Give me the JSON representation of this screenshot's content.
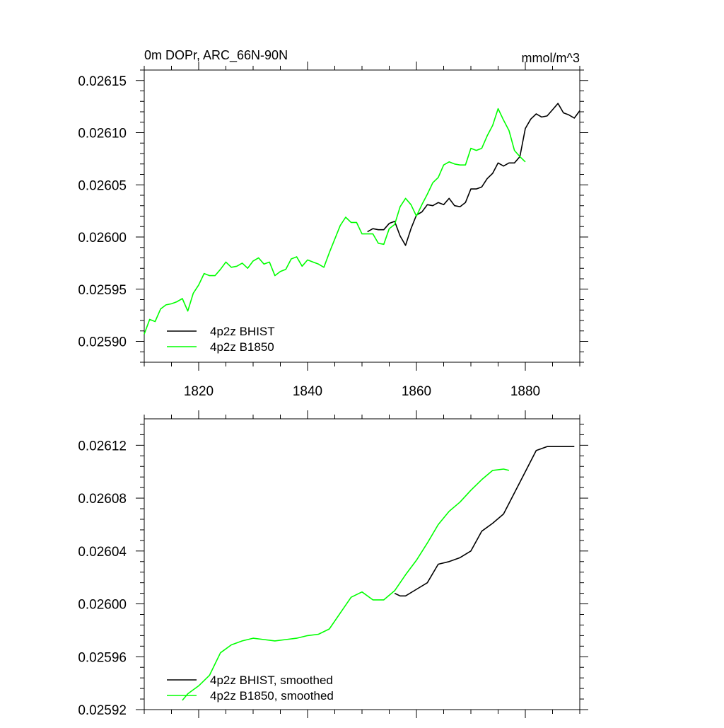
{
  "colors": {
    "bhist": "#000000",
    "b1850": "#00ff00",
    "frame": "#000000"
  },
  "chart_data": [
    {
      "type": "line",
      "title": "0m DOPr, ARC_66N-90N",
      "units": "mmol/m^3",
      "xlim": [
        1810,
        1890
      ],
      "ylim": [
        0.02588,
        0.02616
      ],
      "xticks": [
        1820,
        1840,
        1860,
        1880
      ],
      "xtick_labels": [
        "1820",
        "1840",
        "1860",
        "1880"
      ],
      "yticks": [
        0.0259,
        0.02595,
        0.026,
        0.02605,
        0.0261,
        0.02615
      ],
      "ytick_labels": [
        "0.02590",
        "0.02595",
        "0.02600",
        "0.02605",
        "0.02610",
        "0.02615"
      ],
      "legend": [
        "4p2z BHIST",
        "4p2z B1850"
      ],
      "legend_position": "bottom-left",
      "series": [
        {
          "name": "4p2z BHIST",
          "color": "#000000",
          "x": [
            1851,
            1852,
            1853,
            1854,
            1855,
            1856,
            1857,
            1858,
            1859,
            1860,
            1861,
            1862,
            1863,
            1864,
            1865,
            1866,
            1867,
            1868,
            1869,
            1870,
            1871,
            1872,
            1873,
            1874,
            1875,
            1876,
            1877,
            1878,
            1879,
            1880,
            1881,
            1882,
            1883,
            1884,
            1885,
            1886,
            1887,
            1888,
            1889,
            1890
          ],
          "values": [
            0.026005,
            0.026008,
            0.026007,
            0.026007,
            0.026013,
            0.026015,
            0.026001,
            0.025992,
            0.026008,
            0.026021,
            0.026024,
            0.026031,
            0.02603,
            0.026033,
            0.026031,
            0.026037,
            0.02603,
            0.026029,
            0.026033,
            0.026046,
            0.026046,
            0.026048,
            0.026056,
            0.026061,
            0.026071,
            0.026068,
            0.026071,
            0.026071,
            0.026077,
            0.026104,
            0.026113,
            0.026118,
            0.026115,
            0.026116,
            0.026122,
            0.026128,
            0.026119,
            0.026117,
            0.026114,
            0.026121
          ]
        },
        {
          "name": "4p2z B1850",
          "color": "#00ff00",
          "x": [
            1810,
            1811,
            1812,
            1813,
            1814,
            1815,
            1816,
            1817,
            1818,
            1819,
            1820,
            1821,
            1822,
            1823,
            1824,
            1825,
            1826,
            1827,
            1828,
            1829,
            1830,
            1831,
            1832,
            1833,
            1834,
            1835,
            1836,
            1837,
            1838,
            1839,
            1840,
            1841,
            1842,
            1843,
            1844,
            1845,
            1846,
            1847,
            1848,
            1849,
            1850,
            1851,
            1852,
            1853,
            1854,
            1855,
            1856,
            1857,
            1858,
            1859,
            1860,
            1861,
            1862,
            1863,
            1864,
            1865,
            1866,
            1867,
            1868,
            1869,
            1870,
            1871,
            1872,
            1873,
            1874,
            1875,
            1876,
            1877,
            1878,
            1879,
            1880
          ],
          "values": [
            0.025907,
            0.025921,
            0.025919,
            0.025931,
            0.025935,
            0.025936,
            0.025938,
            0.025941,
            0.025929,
            0.025946,
            0.025954,
            0.025965,
            0.025963,
            0.025963,
            0.025969,
            0.025976,
            0.025971,
            0.025972,
            0.025975,
            0.02597,
            0.025977,
            0.02598,
            0.025974,
            0.025976,
            0.025963,
            0.025967,
            0.025969,
            0.025979,
            0.025981,
            0.025972,
            0.025978,
            0.025976,
            0.025974,
            0.025971,
            0.025985,
            0.025998,
            0.026011,
            0.026019,
            0.026014,
            0.026014,
            0.026003,
            0.026003,
            0.026003,
            0.025994,
            0.025993,
            0.026008,
            0.026012,
            0.026029,
            0.026037,
            0.026031,
            0.02602,
            0.026031,
            0.026041,
            0.026052,
            0.026057,
            0.026069,
            0.026072,
            0.02607,
            0.026069,
            0.026069,
            0.026085,
            0.026083,
            0.026085,
            0.026097,
            0.026107,
            0.026123,
            0.026112,
            0.026102,
            0.026083,
            0.026077,
            0.026072
          ]
        }
      ]
    },
    {
      "type": "line",
      "xlim": [
        1810,
        1890
      ],
      "ylim": [
        0.02592,
        0.02614
      ],
      "xticks": [
        1820,
        1840,
        1860,
        1880
      ],
      "yticks": [
        0.02592,
        0.02596,
        0.026,
        0.02604,
        0.02608,
        0.02612
      ],
      "ytick_labels": [
        "0.02592",
        "0.02596",
        "0.02600",
        "0.02604",
        "0.02608",
        "0.02612"
      ],
      "legend": [
        "4p2z BHIST, smoothed",
        "4p2z B1850, smoothed"
      ],
      "legend_position": "bottom-left",
      "series": [
        {
          "name": "4p2z BHIST, smoothed",
          "color": "#000000",
          "x": [
            1856,
            1857,
            1858,
            1860,
            1862,
            1864,
            1866,
            1868,
            1870,
            1872,
            1874,
            1876,
            1878,
            1880,
            1882,
            1884,
            1886,
            1888,
            1889
          ],
          "values": [
            0.026008,
            0.026006,
            0.026006,
            0.026011,
            0.026016,
            0.02603,
            0.026032,
            0.026035,
            0.02604,
            0.026055,
            0.026061,
            0.026068,
            0.026084,
            0.0261,
            0.026116,
            0.026119,
            0.026119,
            0.026119,
            0.026119
          ]
        },
        {
          "name": "4p2z B1850, smoothed",
          "color": "#00ff00",
          "x": [
            1817,
            1818,
            1820,
            1822,
            1824,
            1826,
            1828,
            1830,
            1832,
            1834,
            1836,
            1838,
            1840,
            1842,
            1844,
            1846,
            1848,
            1850,
            1852,
            1854,
            1856,
            1858,
            1860,
            1862,
            1864,
            1866,
            1868,
            1870,
            1872,
            1874,
            1876,
            1877
          ],
          "values": [
            0.025927,
            0.025932,
            0.025938,
            0.025946,
            0.025963,
            0.025969,
            0.025972,
            0.025974,
            0.025973,
            0.025972,
            0.025973,
            0.025974,
            0.025976,
            0.025977,
            0.025981,
            0.025993,
            0.026005,
            0.026009,
            0.026003,
            0.026003,
            0.02601,
            0.026022,
            0.026033,
            0.026046,
            0.02606,
            0.02607,
            0.026077,
            0.026086,
            0.026094,
            0.026101,
            0.026102,
            0.026101
          ]
        }
      ]
    }
  ]
}
